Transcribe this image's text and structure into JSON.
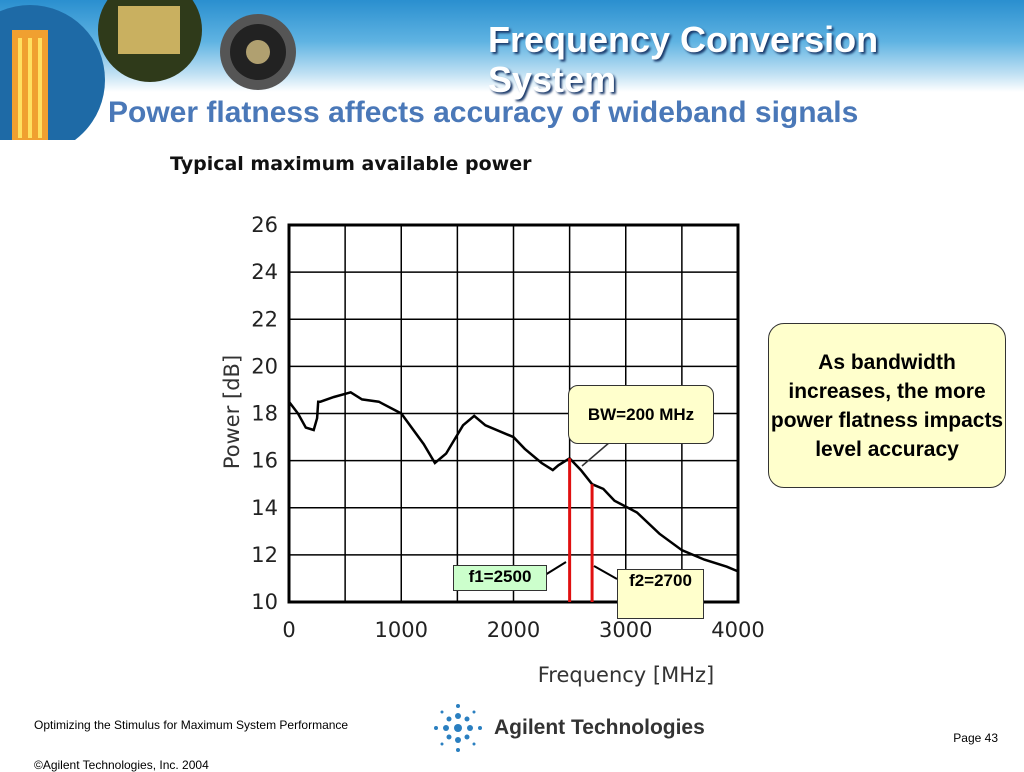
{
  "header": {
    "title": "Frequency Conversion System",
    "subtitle": "Power flatness affects accuracy of wideband signals"
  },
  "chart_data": {
    "type": "line",
    "title": "Typical maximum available power",
    "xlabel": "Frequency [MHz]",
    "ylabel": "Power [dB]",
    "xlim": [
      0,
      4000
    ],
    "ylim": [
      10,
      26
    ],
    "x_ticks": [
      "0",
      "1000",
      "2000",
      "3000",
      "4000"
    ],
    "y_ticks": [
      "10",
      "12",
      "14",
      "16",
      "18",
      "20",
      "22",
      "24",
      "26"
    ],
    "grid": true,
    "series": [
      {
        "x": [
          0,
          80,
          150,
          220,
          250,
          260,
          280,
          400,
          550,
          650,
          800,
          1000,
          1200,
          1300,
          1400,
          1550,
          1650,
          1750,
          2000,
          2100,
          2250,
          2350,
          2400,
          2500,
          2600,
          2700,
          2800,
          2900,
          3100,
          3300,
          3500,
          3700,
          3900,
          4000
        ],
        "y": [
          18.5,
          18.0,
          17.4,
          17.3,
          17.8,
          18.5,
          18.5,
          18.7,
          18.9,
          18.6,
          18.5,
          18.0,
          16.7,
          15.9,
          16.3,
          17.5,
          17.9,
          17.5,
          17.0,
          16.5,
          15.9,
          15.6,
          15.8,
          16.1,
          15.6,
          15.0,
          14.8,
          14.3,
          13.8,
          12.9,
          12.2,
          11.8,
          11.5,
          11.3
        ]
      }
    ],
    "markers": [
      {
        "label": "f1=2500",
        "x": 2500
      },
      {
        "label": "f2=2700",
        "x": 2700
      }
    ],
    "marker_color": "#e01010"
  },
  "callouts": {
    "bandwidth": "BW=200 MHz",
    "note": "As bandwidth increases, the more power flatness impacts level accuracy"
  },
  "footer": {
    "presentation": "Optimizing the Stimulus for Maximum System Performance",
    "copyright": "©Agilent Technologies, Inc. 2004",
    "page": "Page 43",
    "logo_text": "Agilent Technologies"
  }
}
